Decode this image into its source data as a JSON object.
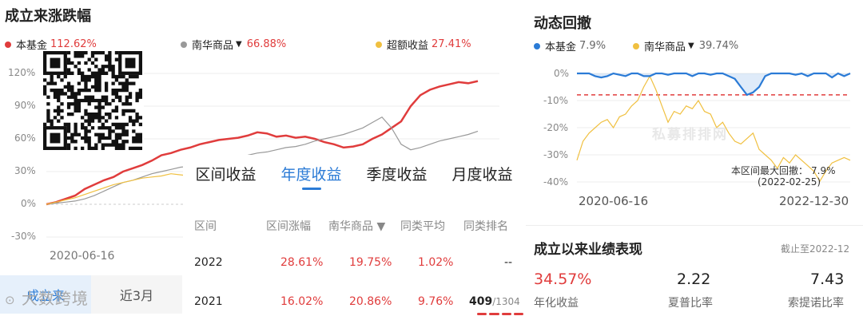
{
  "left": {
    "title": "成立来涨跌幅",
    "legend": [
      {
        "label": "本基金",
        "value": "112.62%",
        "color": "#e03c3c",
        "marker": "dot"
      },
      {
        "label": "南华商品",
        "value": "66.88%",
        "color": "#999999",
        "marker": "dot",
        "dropdown": "▼"
      },
      {
        "label": "超额收益",
        "value": "27.41%",
        "color": "#f0c040",
        "marker": "dot"
      }
    ],
    "y_ticks": [
      "120%",
      "90%",
      "60%",
      "30%",
      "0%",
      "-30%"
    ],
    "x_tick": "2020-06-16",
    "tabs": [
      "成立来",
      "近3月"
    ],
    "watermark": "大数跨境"
  },
  "overlay": {
    "tabs": [
      "区间收益",
      "年度收益",
      "季度收益",
      "月度收益"
    ],
    "headers": [
      "区间",
      "区间涨幅",
      "南华商品 ▼",
      "同类平均",
      "同类排名"
    ],
    "rows": [
      {
        "year": "2022",
        "change": "28.61%",
        "index": "19.75%",
        "avg": "1.02%",
        "rank": "--"
      },
      {
        "year": "2021",
        "change": "16.02%",
        "index": "20.86%",
        "avg": "9.76%",
        "rank": "409",
        "rank_total": "/1304"
      }
    ]
  },
  "right": {
    "title": "动态回撤",
    "legend": [
      {
        "label": "本基金",
        "value": "7.9%",
        "color": "#2b7bd6"
      },
      {
        "label": "南华商品",
        "value": "39.74%",
        "color": "#f0c040",
        "dropdown": "▼"
      }
    ],
    "y_ticks": [
      "0%",
      "-10%",
      "-20%",
      "-30%",
      "-40%"
    ],
    "x_start": "2020-06-16",
    "x_end": "2022-12-30",
    "annotation_line1": "本区间最大回撤：",
    "annotation_value": "7.9%",
    "annotation_line2": "(2022-02-25)",
    "watermark": "私募排排网"
  },
  "performance": {
    "title": "成立以来业绩表现",
    "as_of": "截止至2022-12",
    "stats": [
      {
        "value": "34.57%",
        "label": "年化收益"
      },
      {
        "value": "2.22",
        "label": "夏普比率"
      },
      {
        "value": "7.43",
        "label": "索提诺比率"
      }
    ]
  },
  "chart_data": [
    {
      "type": "line",
      "title": "成立来涨跌幅",
      "xlabel": "",
      "ylabel": "",
      "x_ticks": [
        "2020-06-16"
      ],
      "ylim": [
        -30,
        120
      ],
      "grid": true,
      "series": [
        {
          "name": "本基金",
          "color": "#e03c3c",
          "values": [
            0,
            2,
            5,
            8,
            14,
            18,
            22,
            25,
            30,
            33,
            36,
            40,
            45,
            47,
            50,
            52,
            55,
            57,
            59,
            60,
            61,
            63,
            66,
            65,
            62,
            63,
            61,
            62,
            60,
            57,
            55,
            52,
            53,
            55,
            60,
            64,
            70,
            76,
            90,
            100,
            105,
            108,
            110,
            112,
            111,
            113
          ]
        },
        {
          "name": "南华商品",
          "color": "#999999",
          "values": [
            0,
            1,
            2,
            3,
            5,
            8,
            12,
            16,
            20,
            22,
            25,
            28,
            30,
            32,
            34,
            35,
            36,
            38,
            40,
            42,
            44,
            45,
            47,
            48,
            50,
            52,
            53,
            55,
            58,
            60,
            62,
            64,
            67,
            70,
            75,
            80,
            70,
            55,
            50,
            52,
            55,
            58,
            60,
            62,
            64,
            67
          ]
        },
        {
          "name": "超额收益",
          "color": "#f0c040",
          "values": [
            0,
            2,
            4,
            6,
            9,
            12,
            15,
            18,
            20,
            22,
            24,
            25,
            26,
            28,
            27,
            26,
            25,
            24,
            23,
            22,
            21,
            20,
            19,
            18,
            17,
            16,
            15,
            14,
            13,
            12,
            11,
            10,
            9,
            8,
            9,
            10,
            12,
            15,
            18,
            20,
            22,
            24,
            25,
            26,
            27,
            27
          ]
        }
      ]
    },
    {
      "type": "area",
      "title": "动态回撤",
      "x_ticks": [
        "2020-06-16",
        "2022-12-30"
      ],
      "ylim": [
        -40,
        0
      ],
      "grid": true,
      "series": [
        {
          "name": "本基金",
          "color": "#2b7bd6",
          "values": [
            0,
            0,
            0,
            -1,
            -1.5,
            -1,
            0,
            -0.5,
            -1,
            0,
            0,
            -1,
            -1,
            0,
            0,
            -0.5,
            0,
            0,
            0,
            -1,
            0,
            0,
            -0.5,
            0,
            0,
            -1,
            -2,
            -5,
            -7.9,
            -7,
            -5,
            -1,
            0,
            0,
            0,
            0,
            -0.5,
            0,
            -1,
            0,
            0,
            0,
            -1.5,
            0,
            -1,
            0
          ]
        },
        {
          "name": "南华商品",
          "color": "#f0c040",
          "values": [
            -32,
            -25,
            -22,
            -20,
            -18,
            -17,
            -20,
            -16,
            -15,
            -12,
            -10,
            -5,
            -1,
            -6,
            -12,
            -18,
            -14,
            -15,
            -12,
            -13,
            -10,
            -14,
            -15,
            -20,
            -18,
            -22,
            -25,
            -26,
            -24,
            -22,
            -28,
            -30,
            -32,
            -35,
            -31,
            -33,
            -30,
            -32,
            -34,
            -36,
            -39.74,
            -36,
            -33,
            -32,
            -31,
            -32
          ]
        }
      ],
      "reference_line": {
        "value": -7.9,
        "color": "#e03c3c",
        "style": "dashed"
      }
    }
  ]
}
